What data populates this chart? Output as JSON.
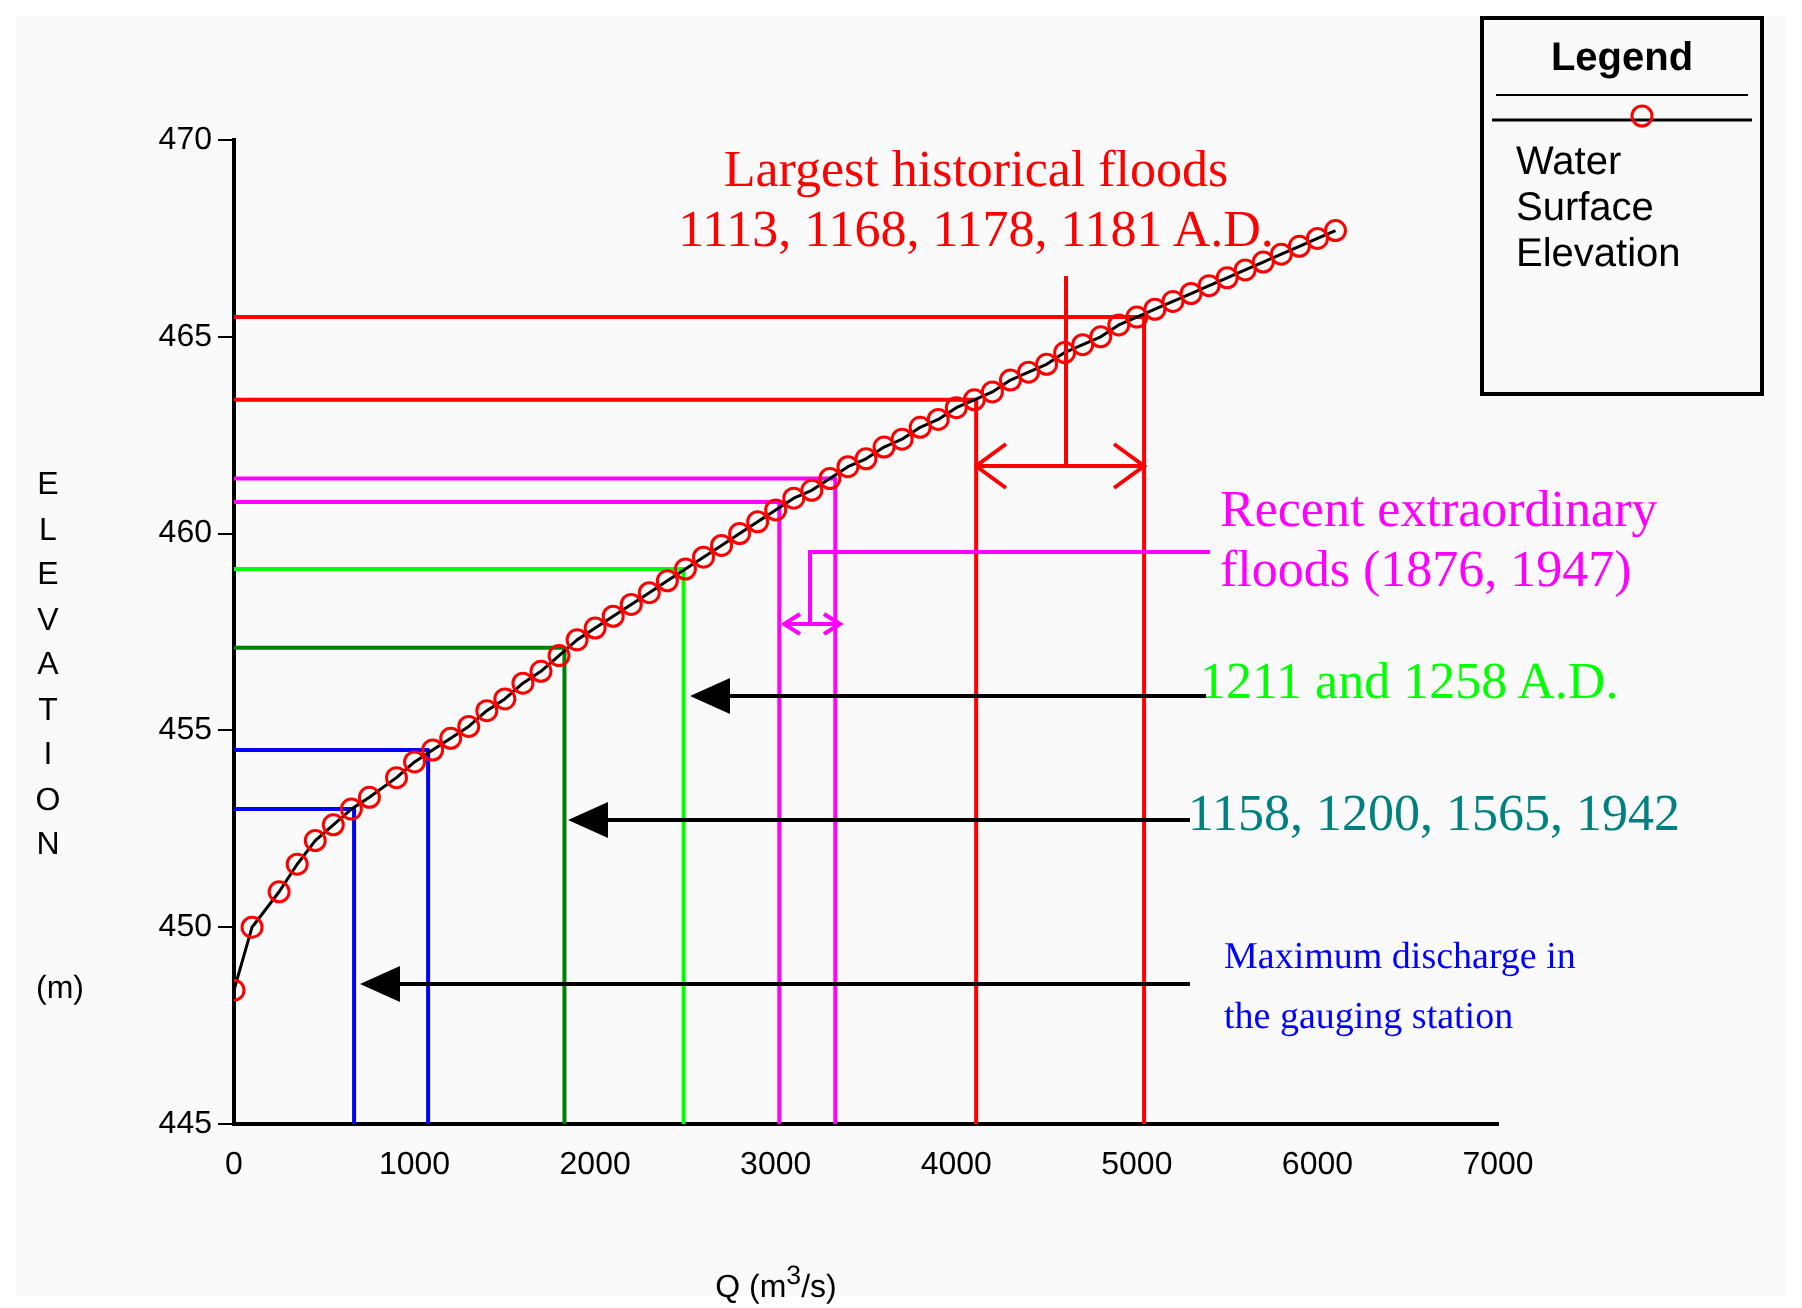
{
  "chart_data": {
    "type": "line",
    "xlabel": "Q (m$^{3}$/s)",
    "ylabel": "ELEVATION",
    "legend_title": "Legend",
    "annotations": [
      "(m)",
      "Largest historical floods\n1113, 1168, 1178, 1181 A.D.",
      "Recent extraordinary\nfloods (1876, 1947)",
      "1211 and 1258 A.D.",
      "1158, 1200, 1565, 1942",
      "Maximum discharge in\nthe gauging station"
    ],
    "xlim": [
      0,
      7000
    ],
    "xticks": [
      0,
      1000,
      2000,
      3000,
      4000,
      5000,
      6000,
      7000
    ],
    "ylim": [
      445,
      470
    ],
    "yticks": [
      445,
      450,
      455,
      460,
      465,
      470
    ],
    "grid": false,
    "legend": "top right",
    "marker": "circle",
    "line_style": "solid",
    "series": [
      {
        "name": "Water Surface Elevation",
        "color": "#ff0000",
        "x": [
          0,
          100,
          250,
          350,
          450,
          550,
          650,
          750,
          900,
          1000,
          1100,
          1200,
          1300,
          1400,
          1500,
          1600,
          1700,
          1800,
          1900,
          2000,
          2100,
          2200,
          2300,
          2400,
          2500,
          2600,
          2700,
          2800,
          2900,
          3000,
          3100,
          3200,
          3300,
          3400,
          3500,
          3600,
          3700,
          3800,
          3900,
          4000,
          4100,
          4200,
          4300,
          4400,
          4500,
          4600,
          4700,
          4800,
          4900,
          5000,
          5100,
          5200,
          5300,
          5400,
          5500,
          5600,
          5700,
          5800,
          5900,
          6000,
          6100
        ],
        "values": [
          448.4,
          450.0,
          450.9,
          451.6,
          452.2,
          452.6,
          453.0,
          453.3,
          453.8,
          454.2,
          454.5,
          454.8,
          455.1,
          455.5,
          455.8,
          456.2,
          456.5,
          456.9,
          457.3,
          457.6,
          457.9,
          458.2,
          458.5,
          458.8,
          459.1,
          459.4,
          459.7,
          460.0,
          460.3,
          460.6,
          460.9,
          461.1,
          461.4,
          461.7,
          461.9,
          462.2,
          462.4,
          462.7,
          462.9,
          463.2,
          463.4,
          463.6,
          463.9,
          464.1,
          464.3,
          464.6,
          464.8,
          465.0,
          465.3,
          465.5,
          465.7,
          465.9,
          466.1,
          466.3,
          466.5,
          466.7,
          466.9,
          467.1,
          467.3,
          467.5,
          467.7
        ]
      },
      {
        "color": "#ff0000",
        "marker": "none",
        "x": [
          0,
          5040,
          5040
        ],
        "values": [
          465.5,
          465.5,
          445
        ]
      },
      {
        "color": "#ff0000",
        "marker": "none",
        "x": [
          0,
          4110,
          4110
        ],
        "values": [
          463.4,
          463.4,
          445
        ]
      },
      {
        "color": "#ff00ff",
        "marker": "none",
        "x": [
          0,
          3330,
          3330
        ],
        "values": [
          461.4,
          461.4,
          445
        ]
      },
      {
        "color": "#ff00ff",
        "marker": "none",
        "x": [
          0,
          3020,
          3020
        ],
        "values": [
          460.8,
          460.8,
          445
        ]
      },
      {
        "color": "#00ff00",
        "marker": "none",
        "x": [
          0,
          2490,
          2490
        ],
        "values": [
          459.1,
          459.1,
          445
        ]
      },
      {
        "color": "#008000",
        "marker": "none",
        "x": [
          0,
          1830,
          1830
        ],
        "values": [
          457.1,
          457.1,
          445
        ]
      },
      {
        "color": "#0000ff",
        "marker": "none",
        "x": [
          0,
          1075,
          1075
        ],
        "values": [
          454.5,
          454.5,
          445
        ]
      },
      {
        "color": "#0000ff",
        "marker": "none",
        "x": [
          0,
          665,
          665
        ],
        "values": [
          453.0,
          453.0,
          445
        ]
      }
    ]
  }
}
